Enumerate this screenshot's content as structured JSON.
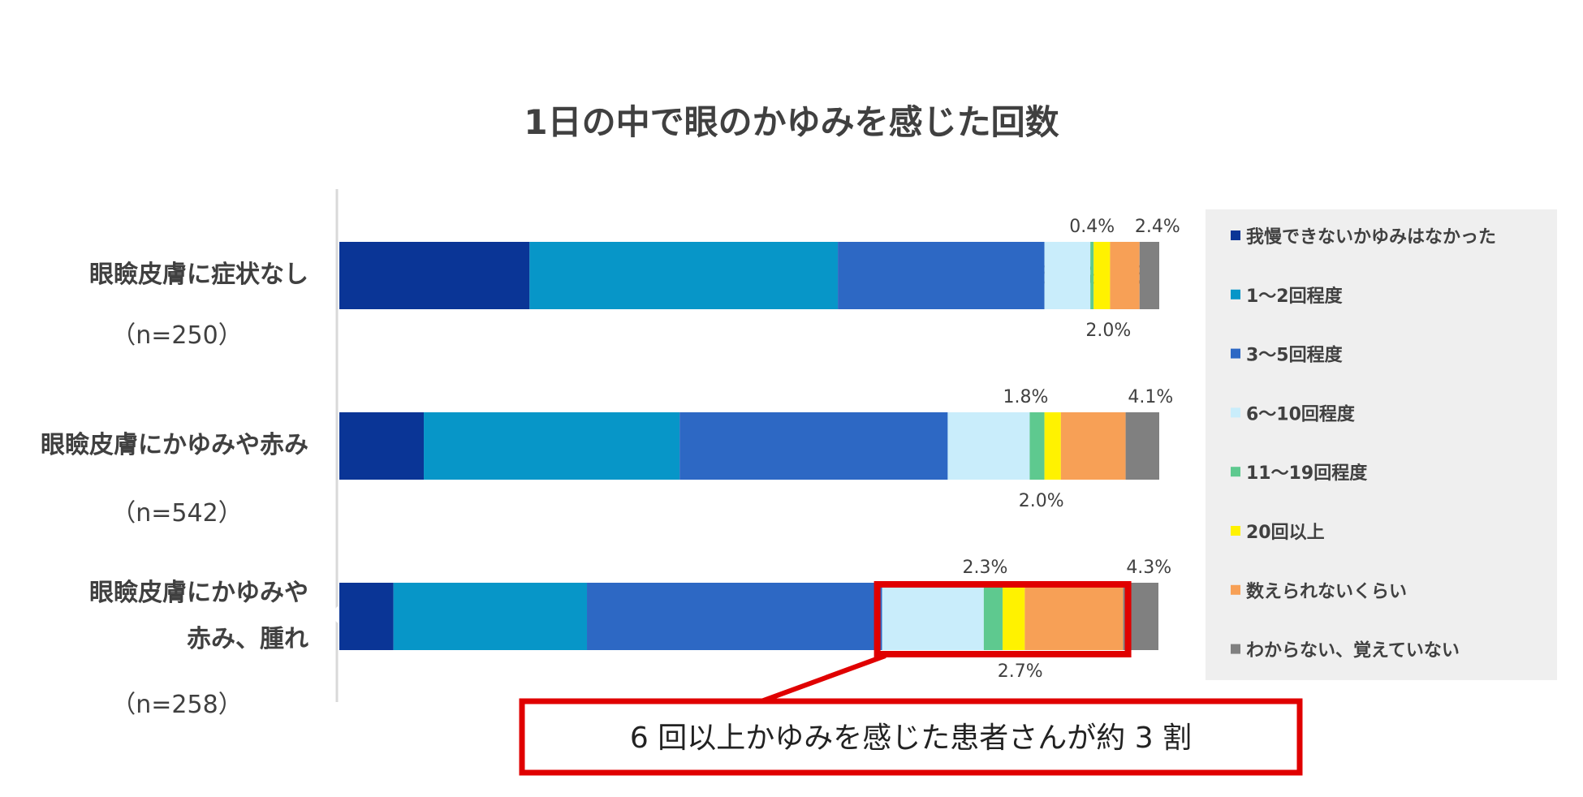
{
  "chart_data": {
    "type": "bar",
    "orientation": "horizontal",
    "stacked": true,
    "title": "1日の中で眼のかゆみを感じた回数",
    "categories": [
      {
        "lines": [
          "眼瞼皮膚に症状なし"
        ],
        "n": "（n=250）"
      },
      {
        "lines": [
          "眼瞼皮膚にかゆみや赤み"
        ],
        "n": "（n=542）"
      },
      {
        "lines": [
          "眼瞼皮膚にかゆみや",
          "赤み、腫れ"
        ],
        "n": "（n=258）"
      }
    ],
    "series": [
      {
        "name": "我慢できないかゆみはなかった",
        "color": "#0a3596",
        "values": [
          23.2,
          10.3,
          6.6
        ]
      },
      {
        "name": "1～2回程度",
        "color": "#0796c8",
        "values": [
          37.6,
          31.2,
          23.6
        ]
      },
      {
        "name": "3～5回程度",
        "color": "#2d68c4",
        "values": [
          25.2,
          32.7,
          36.0
        ]
      },
      {
        "name": "6～10回程度",
        "color": "#c9edfb",
        "values": [
          5.6,
          10.0,
          12.4
        ]
      },
      {
        "name": "11～19回程度",
        "color": "#5ec98f",
        "values": [
          0.4,
          1.8,
          2.3
        ]
      },
      {
        "name": "20回以上",
        "color": "#fff200",
        "values": [
          2.0,
          2.0,
          2.7
        ]
      },
      {
        "name": "数えられないくらい",
        "color": "#f7a056",
        "values": [
          3.6,
          7.9,
          12.0
        ]
      },
      {
        "name": "わからない、覚えていない",
        "color": "#808080",
        "values": [
          2.4,
          4.1,
          4.3
        ]
      }
    ],
    "xlim": [
      0,
      100
    ],
    "legend_position": "right",
    "callout": "6 回以上かゆみを感じた患者さんが約 3 割"
  }
}
